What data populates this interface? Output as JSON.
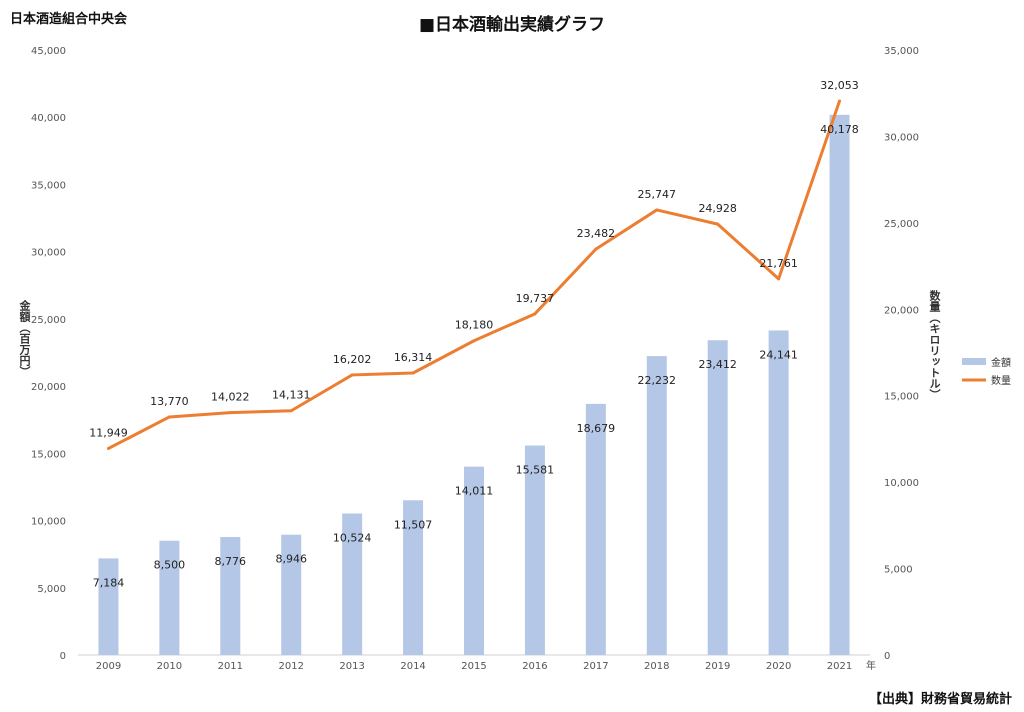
{
  "header": {
    "organization": "日本酒造組合中央会",
    "title": "■日本酒輸出実績グラフ",
    "source": "【出典】財務省貿易統計"
  },
  "chart_data": {
    "type": "bar+line",
    "categories": [
      "2009",
      "2010",
      "2011",
      "2012",
      "2013",
      "2014",
      "2015",
      "2016",
      "2017",
      "2018",
      "2019",
      "2020",
      "2021"
    ],
    "x_unit": "年",
    "series": [
      {
        "name": "金額",
        "type": "bar",
        "axis": "left",
        "color": "#b4c7e7",
        "values": [
          7184,
          8500,
          8776,
          8946,
          10524,
          11507,
          14011,
          15581,
          18679,
          22232,
          23412,
          24141,
          40178
        ]
      },
      {
        "name": "数量",
        "type": "line",
        "axis": "right",
        "color": "#ed7d31",
        "values": [
          11949,
          13770,
          14022,
          14131,
          16202,
          16314,
          18180,
          19737,
          23482,
          25747,
          24928,
          21761,
          32053
        ]
      }
    ],
    "ylabel_left": "金額（百万円）",
    "ylabel_right": "数量（キロリットル）",
    "ylim_left": [
      0,
      45000
    ],
    "yticks_left": [
      0,
      5000,
      10000,
      15000,
      20000,
      25000,
      30000,
      35000,
      40000,
      45000
    ],
    "ylim_right": [
      0,
      35000
    ],
    "yticks_right": [
      0,
      5000,
      10000,
      15000,
      20000,
      25000,
      30000,
      35000
    ],
    "grid": false,
    "legend_position": "right"
  }
}
